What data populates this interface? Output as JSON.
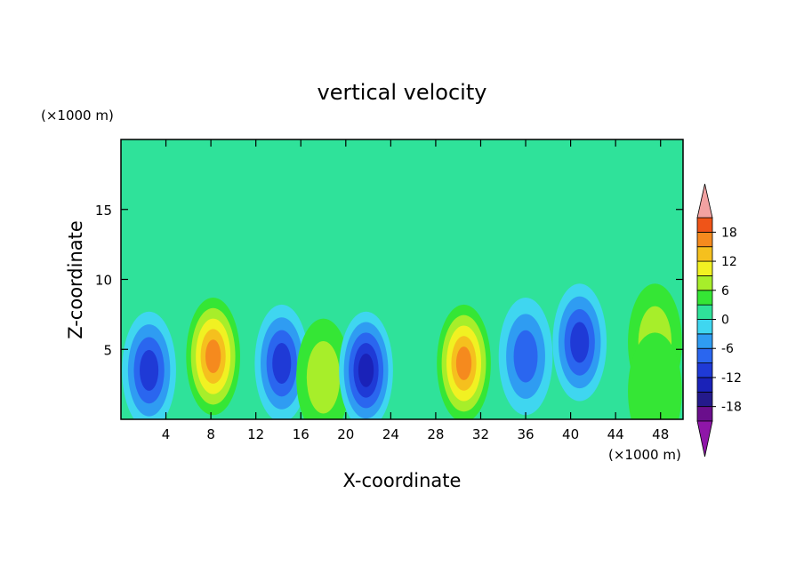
{
  "chart_data": {
    "type": "heatmap",
    "title": "vertical velocity",
    "xlabel": "X-coordinate",
    "ylabel": "Z-coordinate",
    "x_unit": "(×1000 m)",
    "y_unit": "(×1000 m)",
    "xlim": [
      0,
      50
    ],
    "ylim": [
      0,
      20
    ],
    "x_ticks": [
      4,
      8,
      12,
      16,
      20,
      24,
      28,
      32,
      36,
      40,
      44,
      48
    ],
    "x_tick_labels": [
      "4",
      "8",
      "12",
      "16",
      "20",
      "24",
      "28",
      "32",
      "36",
      "40",
      "44",
      "48"
    ],
    "y_ticks": [
      5,
      10,
      15
    ],
    "y_tick_labels": [
      "5",
      "10",
      "15"
    ],
    "grid": false,
    "colorbar": {
      "placement": "right",
      "levels": [
        -21,
        -18,
        -15,
        -12,
        -9,
        -6,
        -3,
        0,
        3,
        6,
        9,
        12,
        15,
        18,
        21
      ],
      "tick_values": [
        18,
        12,
        6,
        0,
        -6,
        -12,
        -18
      ],
      "tick_labels": [
        "18",
        "12",
        "6",
        "0",
        "-6",
        "-12",
        "-18"
      ],
      "colors": [
        "#6a0f8c",
        "#241a8c",
        "#1a22b8",
        "#1f3ad6",
        "#2a66ef",
        "#2f9cf2",
        "#3fd6f0",
        "#2fe29a",
        "#35e635",
        "#a7ee2a",
        "#f1f122",
        "#f5c01e",
        "#f58a1e",
        "#ef5418",
        "#e62a14",
        "#f2a2a2"
      ],
      "under_color": "#8f16a8",
      "over_color": "#f2a2a2"
    },
    "cells": [
      {
        "x": 2.5,
        "z": 3.5,
        "w": -13
      },
      {
        "x": 8.2,
        "z": 4.5,
        "w": 16
      },
      {
        "x": 14.3,
        "z": 4.0,
        "w": -12
      },
      {
        "x": 18.0,
        "z": 3.0,
        "w": 6
      },
      {
        "x": 21.8,
        "z": 3.5,
        "w": -14
      },
      {
        "x": 30.5,
        "z": 4.0,
        "w": 15
      },
      {
        "x": 36.0,
        "z": 4.5,
        "w": -9
      },
      {
        "x": 40.8,
        "z": 5.5,
        "w": -12
      },
      {
        "x": 47.5,
        "z": 5.5,
        "w": 7
      },
      {
        "x": 47.5,
        "z": 2.0,
        "w": 4
      }
    ]
  }
}
